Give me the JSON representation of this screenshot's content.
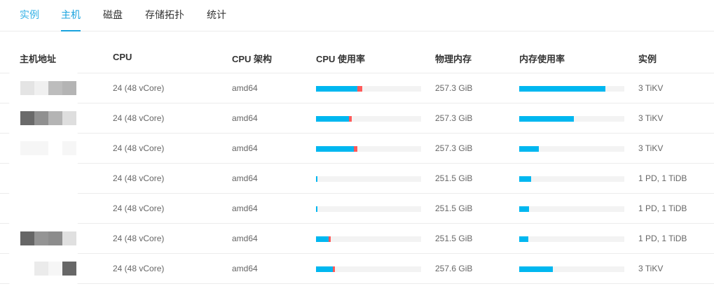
{
  "tabs": [
    {
      "label": "实例",
      "state": "hover"
    },
    {
      "label": "主机",
      "state": "active"
    },
    {
      "label": "磁盘",
      "state": ""
    },
    {
      "label": "存储拓扑",
      "state": ""
    },
    {
      "label": "统计",
      "state": ""
    }
  ],
  "columns": [
    "主机地址",
    "CPU",
    "CPU 架构",
    "CPU 使用率",
    "物理内存",
    "内存使用率",
    "实例"
  ],
  "colors": {
    "accent": "#1aa3de",
    "cpu_user": "#00b7f0",
    "cpu_system": "#ff5a5a",
    "bar_track": "#f3f3f3"
  },
  "rows": [
    {
      "host_redacted": [
        "#e4e4e4",
        "#f0f0f0",
        "#bdbdbd",
        "#b4b4b4"
      ],
      "cpu": "24 (48 vCore)",
      "arch": "amd64",
      "cpu_user": 0.39,
      "cpu_sys": 0.05,
      "memory": "257.3 GiB",
      "mem_usage": 0.82,
      "instances": "3 TiKV"
    },
    {
      "host_redacted": [
        "#6a6a6a",
        "#909090",
        "#b4b4b4",
        "#dedede"
      ],
      "cpu": "24 (48 vCore)",
      "arch": "amd64",
      "cpu_user": 0.31,
      "cpu_sys": 0.03,
      "memory": "257.3 GiB",
      "mem_usage": 0.52,
      "instances": "3 TiKV"
    },
    {
      "host_redacted": [
        "#f6f6f6",
        "#f6f6f6",
        "#ffffff",
        "#f6f6f6"
      ],
      "cpu": "24 (48 vCore)",
      "arch": "amd64",
      "cpu_user": 0.36,
      "cpu_sys": 0.033,
      "memory": "257.3 GiB",
      "mem_usage": 0.187,
      "instances": "3 TiKV"
    },
    {
      "host_redacted": [
        "#ffffff",
        "#ffffff",
        "#ffffff",
        "#ffffff"
      ],
      "cpu": "24 (48 vCore)",
      "arch": "amd64",
      "cpu_user": 0.013,
      "cpu_sys": 0,
      "memory": "251.5 GiB",
      "mem_usage": 0.113,
      "instances": "1 PD, 1 TiDB"
    },
    {
      "host_redacted": [
        "#ffffff",
        "#ffffff",
        "#ffffff",
        "#ffffff"
      ],
      "cpu": "24 (48 vCore)",
      "arch": "amd64",
      "cpu_user": 0.013,
      "cpu_sys": 0,
      "memory": "251.5 GiB",
      "mem_usage": 0.093,
      "instances": "1 PD, 1 TiDB"
    },
    {
      "host_redacted": [
        "#666666",
        "#949494",
        "#8c8c8c",
        "#e0e0e0"
      ],
      "cpu": "24 (48 vCore)",
      "arch": "amd64",
      "cpu_user": 0.122,
      "cpu_sys": 0.016,
      "memory": "251.5 GiB",
      "mem_usage": 0.087,
      "instances": "1 PD, 1 TiDB"
    },
    {
      "host_redacted": [
        "#ffffff",
        "#ebebeb",
        "#f6f6f6",
        "#676767"
      ],
      "cpu": "24 (48 vCore)",
      "arch": "amd64",
      "cpu_user": 0.16,
      "cpu_sys": 0.02,
      "memory": "257.6 GiB",
      "mem_usage": 0.32,
      "instances": "3 TiKV"
    }
  ]
}
